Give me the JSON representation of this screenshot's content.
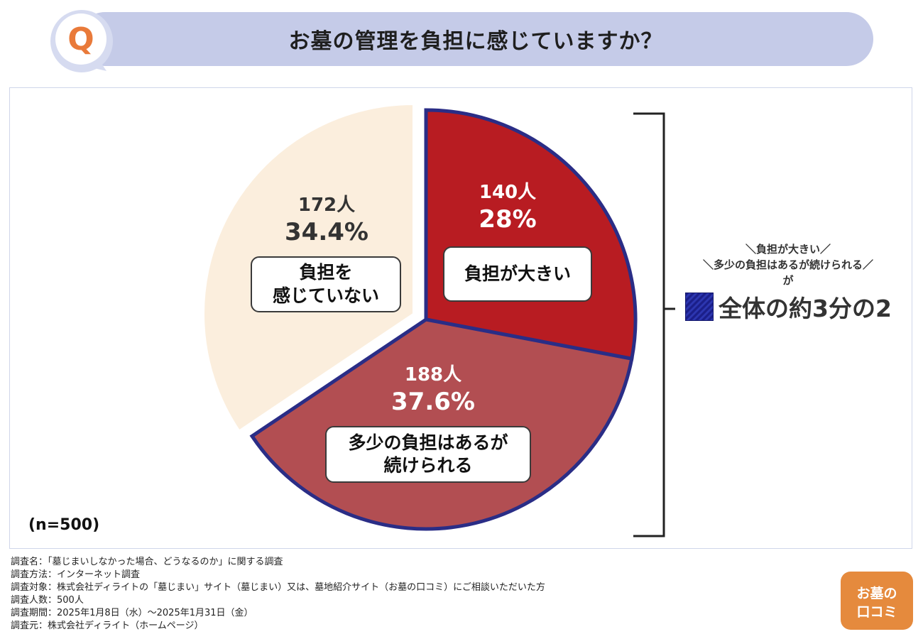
{
  "header": {
    "badge_letter": "Q",
    "title": "お墓の管理を負担に感じていますか？"
  },
  "chart_data": {
    "type": "pie",
    "title": "お墓の管理を負担に感じていますか？",
    "n_label": "(n=500)",
    "slices": [
      {
        "name": "負担が大きい",
        "label": "負担が大きい",
        "count_label": "140人",
        "value": 28,
        "percent_label": "28%",
        "color": "#b81c22"
      },
      {
        "name": "多少の負担はあるが続けられる",
        "label": "多少の負担はあるが\n続けられる",
        "count_label": "188人",
        "value": 37.6,
        "percent_label": "37.6%",
        "color": "#b24e52"
      },
      {
        "name": "負担を感じていない",
        "label": "負担を\n感じていない",
        "count_label": "172人",
        "value": 34.4,
        "percent_label": "34.4%",
        "color": "#fbeedd"
      }
    ],
    "highlight_border_color": "#2a2d86",
    "summary": {
      "note_line1": "＼負担が大きい／",
      "note_line2": "＼多少の負担はあるが続けられる／",
      "note_line3": "が",
      "main": "全体の約3分の2"
    }
  },
  "survey": {
    "lines": [
      "調査名：「墓じまいしなかった場合、どうなるのか」に関する調査",
      "調査方法：インターネット調査",
      "調査対象：株式会社ディライトの「墓じまい」サイト（墓じまい）又は、墓地紹介サイト（お墓の口コミ）にご相談いただいた方",
      "調査人数：500人",
      "調査期間：2025年1月8日（水）～2025年1月31日（金）",
      "調査元：株式会社ディライト（ホームページ）"
    ]
  },
  "logo": {
    "line1": "お墓の",
    "line2": "口コミ"
  }
}
